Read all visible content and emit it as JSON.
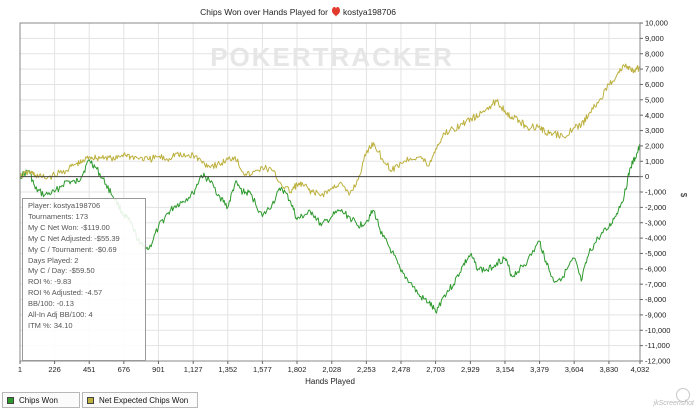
{
  "chart_data": {
    "type": "line",
    "title_prefix": "Chips Won over Hands Played for",
    "player_name": "kostya198706",
    "xlabel": "Hands Played",
    "ylabel": "$",
    "xlim": [
      1,
      4032
    ],
    "ylim": [
      -12000,
      10000
    ],
    "x_ticks": [
      1,
      226,
      451,
      676,
      901,
      1127,
      1352,
      1577,
      1802,
      2028,
      2253,
      2478,
      2703,
      2929,
      3154,
      3379,
      3604,
      3830,
      4032
    ],
    "y_ticks": [
      10000,
      9000,
      8000,
      7000,
      6000,
      5000,
      4000,
      3000,
      2000,
      1000,
      0,
      -1000,
      -2000,
      -3000,
      -4000,
      -5000,
      -6000,
      -7000,
      -8000,
      -9000,
      -10000,
      -11000,
      -12000
    ],
    "y_tick_labels": [
      "10,000",
      "9,000",
      "8,000",
      "7,000",
      "6,000",
      "5,000",
      "4,000",
      "3,000",
      "2,000",
      "1,000",
      "0",
      "-1,000",
      "-2,000",
      "-3,000",
      "-4,000",
      "-5,000",
      "-6,000",
      "-7,000",
      "-8,000",
      "-9,000",
      "-10,000",
      "-11,000",
      "-12,000"
    ],
    "grid": true,
    "watermark": "POKERTRACKER",
    "series": [
      {
        "name": "Chips Won",
        "color": "#2e9a2e",
        "x": [
          1,
          60,
          100,
          160,
          226,
          300,
          360,
          400,
          451,
          500,
          560,
          620,
          676,
          720,
          780,
          840,
          901,
          960,
          1010,
          1060,
          1127,
          1180,
          1230,
          1300,
          1352,
          1400,
          1450,
          1500,
          1577,
          1640,
          1700,
          1760,
          1802,
          1850,
          1900,
          1960,
          2028,
          2080,
          2140,
          2200,
          2253,
          2300,
          2360,
          2420,
          2478,
          2540,
          2600,
          2660,
          2703,
          2760,
          2820,
          2880,
          2929,
          2980,
          3040,
          3100,
          3154,
          3200,
          3250,
          3300,
          3379,
          3420,
          3470,
          3530,
          3604,
          3650,
          3700,
          3760,
          3830,
          3880,
          3930,
          3970,
          4000,
          4032
        ],
        "values": [
          0,
          400,
          -800,
          -1200,
          -1000,
          -300,
          -400,
          0,
          1100,
          500,
          -500,
          -1500,
          -2500,
          -3000,
          -4400,
          -4700,
          -3300,
          -2400,
          -1900,
          -1600,
          -1100,
          100,
          -200,
          -1300,
          -2000,
          -400,
          -1000,
          -1100,
          -2600,
          -1800,
          -700,
          -1600,
          -2800,
          -2500,
          -2300,
          -3200,
          -2600,
          -2200,
          -2600,
          -3200,
          -2900,
          -2200,
          -3900,
          -4900,
          -6200,
          -6900,
          -7800,
          -8200,
          -8800,
          -7700,
          -7000,
          -5800,
          -5100,
          -6000,
          -6100,
          -5600,
          -5300,
          -6500,
          -6000,
          -5500,
          -4200,
          -5500,
          -6800,
          -6500,
          -5300,
          -6800,
          -5000,
          -4000,
          -3300,
          -2400,
          -1200,
          600,
          1200,
          2000
        ]
      },
      {
        "name": "Net Expected Chips Won",
        "color": "#bdb13f",
        "x": [
          1,
          60,
          100,
          160,
          226,
          300,
          360,
          400,
          451,
          500,
          560,
          620,
          676,
          720,
          780,
          840,
          901,
          960,
          1010,
          1060,
          1127,
          1180,
          1230,
          1300,
          1352,
          1400,
          1450,
          1500,
          1577,
          1640,
          1700,
          1760,
          1802,
          1850,
          1900,
          1960,
          2028,
          2080,
          2140,
          2200,
          2253,
          2300,
          2360,
          2420,
          2478,
          2540,
          2600,
          2660,
          2703,
          2760,
          2820,
          2880,
          2929,
          2980,
          3040,
          3100,
          3154,
          3200,
          3250,
          3300,
          3379,
          3420,
          3470,
          3530,
          3604,
          3650,
          3700,
          3760,
          3830,
          3880,
          3930,
          3970,
          4000,
          4032
        ],
        "values": [
          0,
          300,
          100,
          -100,
          100,
          400,
          800,
          900,
          1300,
          1200,
          1300,
          1100,
          1500,
          1300,
          1200,
          1100,
          1300,
          1100,
          1500,
          1300,
          1400,
          1000,
          700,
          800,
          1100,
          1300,
          300,
          100,
          600,
          400,
          -500,
          -1000,
          -500,
          -600,
          -1000,
          -1200,
          -800,
          -400,
          -1200,
          -200,
          1600,
          2200,
          1100,
          400,
          900,
          1200,
          1300,
          700,
          1800,
          2800,
          3100,
          3400,
          3800,
          3900,
          4500,
          4900,
          4300,
          3900,
          3600,
          3200,
          3300,
          2800,
          2800,
          2600,
          3200,
          3300,
          4100,
          4800,
          6000,
          6600,
          7200,
          7000,
          6800,
          7200
        ]
      }
    ]
  },
  "stats_box": {
    "player": "Player: kostya198706",
    "tournaments": "Tournaments: 173",
    "net_won": "My C Net Won: -$119.00",
    "net_won_adjusted": "My C Net Adjusted: -$55.39",
    "per_tournament": "My C / Tournament: -$0.69",
    "days_played": "Days Played: 2",
    "per_day": "My C / Day: -$59.50",
    "roi": "ROI %: -9.83",
    "roi_adjusted": "ROI % Adjusted: -4.57",
    "bb100": "BB/100: -0.13",
    "allin_bb100": "All-In Adj BB/100: 4",
    "itm": "ITM %: 34.10"
  },
  "legend": {
    "items": [
      {
        "label": "Chips Won",
        "color": "#2e9a2e"
      },
      {
        "label": "Net Expected Chips Won",
        "color": "#bdb13f"
      }
    ]
  },
  "footer": {
    "credit": "jkScreenshot"
  }
}
